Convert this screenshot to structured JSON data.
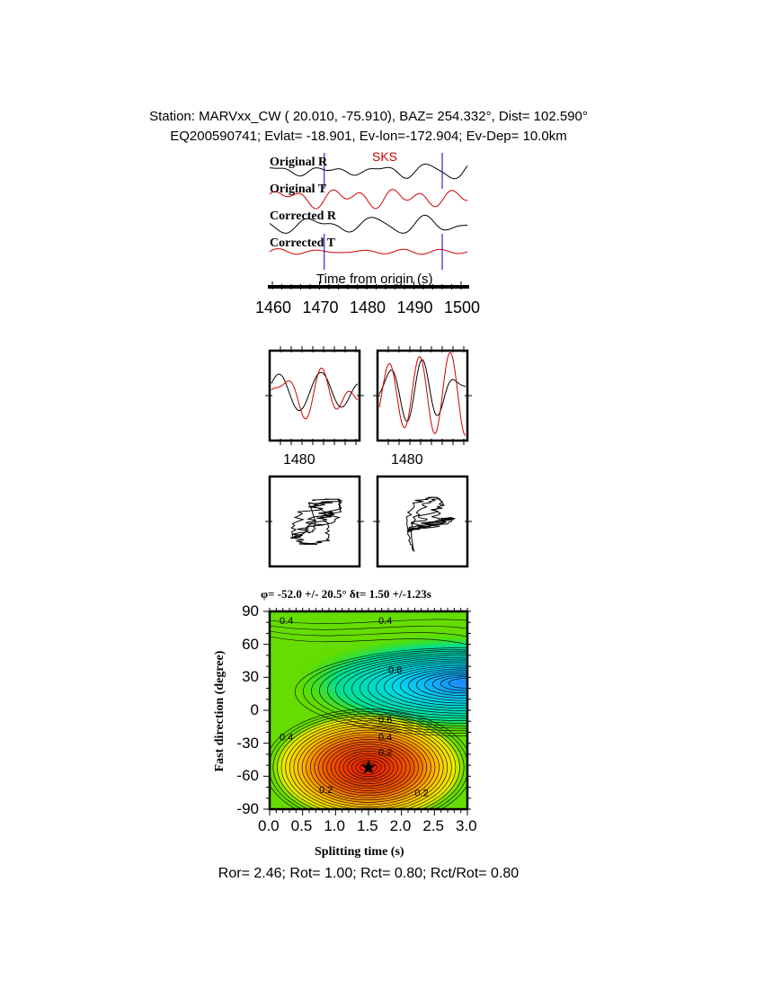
{
  "header": {
    "line1": "Station: MARVxx_CW (  20.010,  -75.910), BAZ=  254.332°, Dist=  102.590°",
    "line2": "EQ200590741; Evlat= -18.901, Ev-lon=-172.904; Ev-Dep= 10.0km"
  },
  "traces": {
    "labels": [
      "Original R",
      "Original T",
      "Corrected R",
      "Corrected T"
    ],
    "colors": [
      "#000000",
      "#d00000",
      "#000000",
      "#d00000"
    ],
    "phase": "SKS",
    "phase_color": "#d00000",
    "window_marker_color": "#0000cc",
    "window": [
      1471,
      1496
    ],
    "xlabel": "Time from origin (s)",
    "xticks": [
      "1460",
      "1470",
      "1480",
      "1490",
      "1500"
    ],
    "xlim": [
      1459,
      1501
    ]
  },
  "waveform_panels": {
    "tick_labels": [
      "1480",
      "1480"
    ]
  },
  "chart_data": {
    "type": "heatmap",
    "title": "φ= -52.0 +/- 20.5° δt= 1.50 +/-1.23s",
    "xlabel": "Splitting time (s)",
    "ylabel": "Fast direction (degree)",
    "xlim": [
      0.0,
      3.0
    ],
    "ylim": [
      -90,
      90
    ],
    "xticks": [
      "0.0",
      "0.5",
      "1.0",
      "1.5",
      "2.0",
      "2.5",
      "3.0"
    ],
    "yticks": [
      "90",
      "60",
      "30",
      "0",
      "-30",
      "-60",
      "-90"
    ],
    "best_fit": {
      "dt": 1.5,
      "phi": -52.0,
      "marker": "star-icon"
    },
    "minimum_region": {
      "dt": 1.5,
      "phi": -52,
      "color": "#e82000"
    },
    "maximum_region": {
      "dt": 2.95,
      "phi": 25,
      "color": "#1e90ff"
    },
    "background_color": "#66dd00",
    "contour_labels": [
      {
        "text": "0.4",
        "dt": 0.15,
        "phi": 82
      },
      {
        "text": "0.4",
        "dt": 1.65,
        "phi": 82
      },
      {
        "text": "0.6",
        "dt": 1.8,
        "phi": 37
      },
      {
        "text": "0.6",
        "dt": 1.65,
        "phi": -8
      },
      {
        "text": "0.4",
        "dt": 0.15,
        "phi": -24
      },
      {
        "text": "0.4",
        "dt": 1.65,
        "phi": -24
      },
      {
        "text": "0.2",
        "dt": 1.65,
        "phi": -38
      },
      {
        "text": "0.2",
        "dt": 0.75,
        "phi": -72
      },
      {
        "text": "0.2",
        "dt": 2.2,
        "phi": -75
      }
    ]
  },
  "footer": "Ror= 2.46; Rot= 1.00; Rct= 0.80; Rct/Rot= 0.80"
}
